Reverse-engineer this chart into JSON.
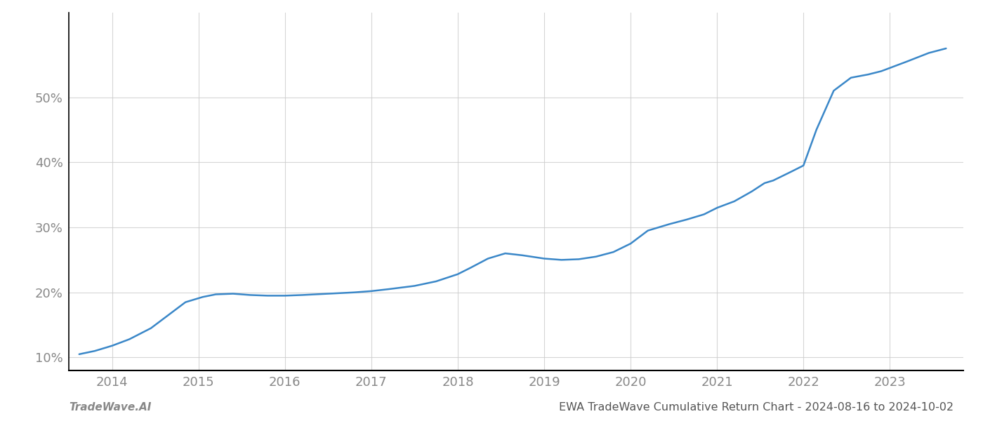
{
  "x": [
    2013.62,
    2013.8,
    2014.0,
    2014.2,
    2014.45,
    2014.65,
    2014.85,
    2015.05,
    2015.2,
    2015.4,
    2015.6,
    2015.8,
    2016.0,
    2016.2,
    2016.5,
    2016.8,
    2017.0,
    2017.2,
    2017.5,
    2017.75,
    2018.0,
    2018.15,
    2018.35,
    2018.55,
    2018.75,
    2019.0,
    2019.2,
    2019.4,
    2019.6,
    2019.8,
    2020.0,
    2020.2,
    2020.45,
    2020.65,
    2020.85,
    2021.0,
    2021.2,
    2021.4,
    2021.55,
    2021.65,
    2021.85,
    2022.0,
    2022.15,
    2022.35,
    2022.55,
    2022.75,
    2022.9,
    2023.0,
    2023.2,
    2023.45,
    2023.65
  ],
  "y": [
    10.5,
    11.0,
    11.8,
    12.8,
    14.5,
    16.5,
    18.5,
    19.3,
    19.7,
    19.8,
    19.6,
    19.5,
    19.5,
    19.6,
    19.8,
    20.0,
    20.2,
    20.5,
    21.0,
    21.7,
    22.8,
    23.8,
    25.2,
    26.0,
    25.7,
    25.2,
    25.0,
    25.1,
    25.5,
    26.2,
    27.5,
    29.5,
    30.5,
    31.2,
    32.0,
    33.0,
    34.0,
    35.5,
    36.8,
    37.2,
    38.5,
    39.5,
    45.0,
    51.0,
    53.0,
    53.5,
    54.0,
    54.5,
    55.5,
    56.8,
    57.5
  ],
  "line_color": "#3a87c8",
  "line_width": 1.8,
  "title": "EWA TradeWave Cumulative Return Chart - 2024-08-16 to 2024-10-02",
  "watermark": "TradeWave.AI",
  "xticks": [
    2014,
    2015,
    2016,
    2017,
    2018,
    2019,
    2020,
    2021,
    2022,
    2023
  ],
  "yticks": [
    10,
    20,
    30,
    40,
    50
  ],
  "xlim": [
    2013.5,
    2023.85
  ],
  "ylim": [
    8.0,
    63.0
  ],
  "bg_color": "#ffffff",
  "grid_color": "#cccccc",
  "tick_label_color": "#888888",
  "title_color": "#555555",
  "watermark_color": "#888888",
  "title_fontsize": 11.5,
  "tick_fontsize": 13,
  "watermark_fontsize": 11
}
